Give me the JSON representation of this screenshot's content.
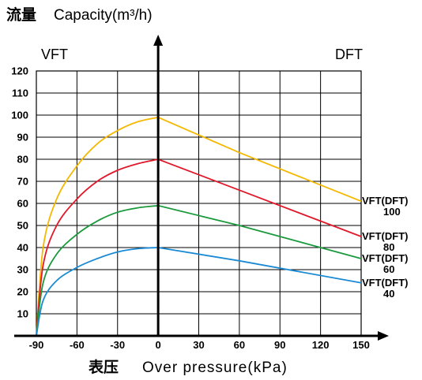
{
  "chart_data": {
    "type": "line",
    "title_cn": "流量",
    "ylabel": "Capacity(m³/h)",
    "xlabel_cn": "表压",
    "xlabel": "Over pressure(kPa)",
    "left_label": "VFT",
    "right_label": "DFT",
    "xlim": [
      -90,
      150
    ],
    "ylim": [
      0,
      120
    ],
    "x_ticks": [
      "-90",
      "-60",
      "-30",
      "0",
      "30",
      "60",
      "90",
      "120",
      "150"
    ],
    "y_ticks": [
      "10",
      "20",
      "30",
      "40",
      "50",
      "60",
      "70",
      "80",
      "90",
      "100",
      "110",
      "120"
    ],
    "grid": true,
    "series": [
      {
        "name": "VFT(DFT)",
        "size": "100",
        "color": "#f5b800",
        "points": [
          [
            -90,
            0
          ],
          [
            -85,
            40
          ],
          [
            -75,
            62
          ],
          [
            -60,
            77
          ],
          [
            -45,
            87
          ],
          [
            -30,
            93
          ],
          [
            -15,
            97
          ],
          [
            0,
            99
          ],
          [
            60,
            83
          ],
          [
            150,
            61
          ]
        ]
      },
      {
        "name": "VFT(DFT)",
        "size": "80",
        "color": "#e0182a",
        "points": [
          [
            -90,
            0
          ],
          [
            -85,
            32
          ],
          [
            -75,
            50
          ],
          [
            -60,
            62
          ],
          [
            -45,
            70
          ],
          [
            -30,
            75
          ],
          [
            -15,
            78
          ],
          [
            0,
            80
          ],
          [
            60,
            66
          ],
          [
            150,
            45
          ]
        ]
      },
      {
        "name": "VFT(DFT)",
        "size": "60",
        "color": "#1a9a3c",
        "points": [
          [
            -90,
            0
          ],
          [
            -85,
            24
          ],
          [
            -75,
            37
          ],
          [
            -60,
            46
          ],
          [
            -45,
            52
          ],
          [
            -30,
            56
          ],
          [
            -15,
            58
          ],
          [
            0,
            59
          ],
          [
            60,
            50
          ],
          [
            150,
            35
          ]
        ]
      },
      {
        "name": "VFT(DFT)",
        "size": "40",
        "color": "#1a8ad4",
        "points": [
          [
            -90,
            0
          ],
          [
            -85,
            16
          ],
          [
            -75,
            25
          ],
          [
            -60,
            31
          ],
          [
            -45,
            35
          ],
          [
            -30,
            38
          ],
          [
            -15,
            39.5
          ],
          [
            0,
            40
          ],
          [
            60,
            34
          ],
          [
            150,
            24
          ]
        ]
      }
    ]
  }
}
